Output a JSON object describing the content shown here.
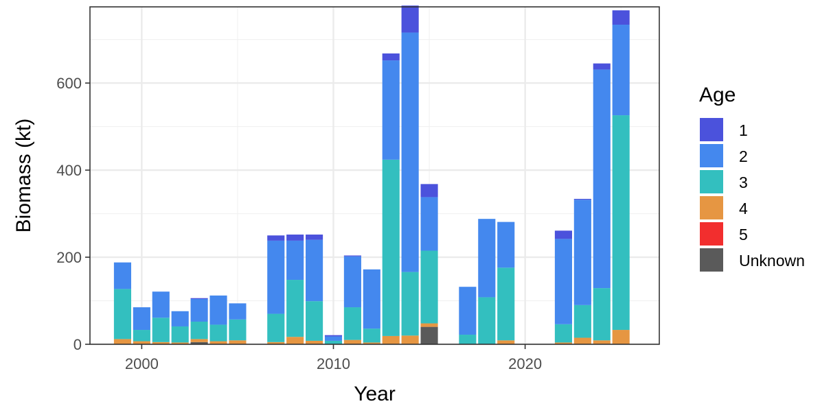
{
  "chart_data": {
    "type": "bar",
    "stacked": true,
    "xlabel": "Year",
    "ylabel": "Biomass (kt)",
    "xlim": [
      1997.3,
      2027.0
    ],
    "ylim": [
      0,
      775
    ],
    "x_ticks": [
      2000,
      2010,
      2020
    ],
    "y_ticks": [
      0,
      200,
      400,
      600
    ],
    "grid": true,
    "legend": {
      "title": "Age",
      "position": "right"
    },
    "series": [
      {
        "name": "Unknown",
        "color": "#5a5a5a",
        "x": [
          2003,
          2015
        ],
        "values": [
          5,
          40
        ]
      },
      {
        "name": "5",
        "color": "#f22e2e",
        "x": [],
        "values": []
      },
      {
        "name": "4",
        "color": "#e69642",
        "x": [
          1999,
          2000,
          2001,
          2002,
          2003,
          2004,
          2005,
          2007,
          2008,
          2009,
          2011,
          2012,
          2013,
          2014,
          2015,
          2019,
          2022,
          2023,
          2024,
          2025
        ],
        "values": [
          12,
          7,
          5,
          4,
          7,
          7,
          9,
          5,
          17,
          8,
          10,
          4,
          19,
          20,
          8,
          9,
          4,
          15,
          9,
          33
        ]
      },
      {
        "name": "3",
        "color": "#33bfbf",
        "x": [
          1999,
          2000,
          2001,
          2002,
          2003,
          2004,
          2005,
          2007,
          2008,
          2009,
          2010,
          2011,
          2012,
          2013,
          2014,
          2015,
          2017,
          2018,
          2019,
          2022,
          2023,
          2024,
          2025
        ],
        "values": [
          115,
          26,
          56,
          37,
          40,
          38,
          48,
          65,
          131,
          91,
          8,
          75,
          32,
          405,
          146,
          167,
          22,
          108,
          167,
          42,
          75,
          120,
          493
        ]
      },
      {
        "name": "2",
        "color": "#4488ee",
        "x": [
          1999,
          2000,
          2001,
          2002,
          2003,
          2004,
          2005,
          2007,
          2008,
          2009,
          2010,
          2011,
          2012,
          2013,
          2014,
          2015,
          2017,
          2018,
          2019,
          2022,
          2023,
          2024,
          2025
        ],
        "values": [
          61,
          52,
          60,
          35,
          52,
          67,
          37,
          168,
          90,
          141,
          10,
          117,
          136,
          228,
          550,
          123,
          110,
          180,
          105,
          196,
          242,
          502,
          208
        ]
      },
      {
        "name": "1",
        "color": "#4b52dc",
        "x": [
          2003,
          2007,
          2008,
          2009,
          2010,
          2011,
          2013,
          2014,
          2015,
          2022,
          2023,
          2024,
          2025
        ],
        "values": [
          2,
          12,
          14,
          12,
          3,
          2,
          16,
          62,
          30,
          19,
          2,
          14,
          33
        ]
      }
    ]
  },
  "legend_order": [
    "1",
    "2",
    "3",
    "4",
    "5",
    "Unknown"
  ]
}
